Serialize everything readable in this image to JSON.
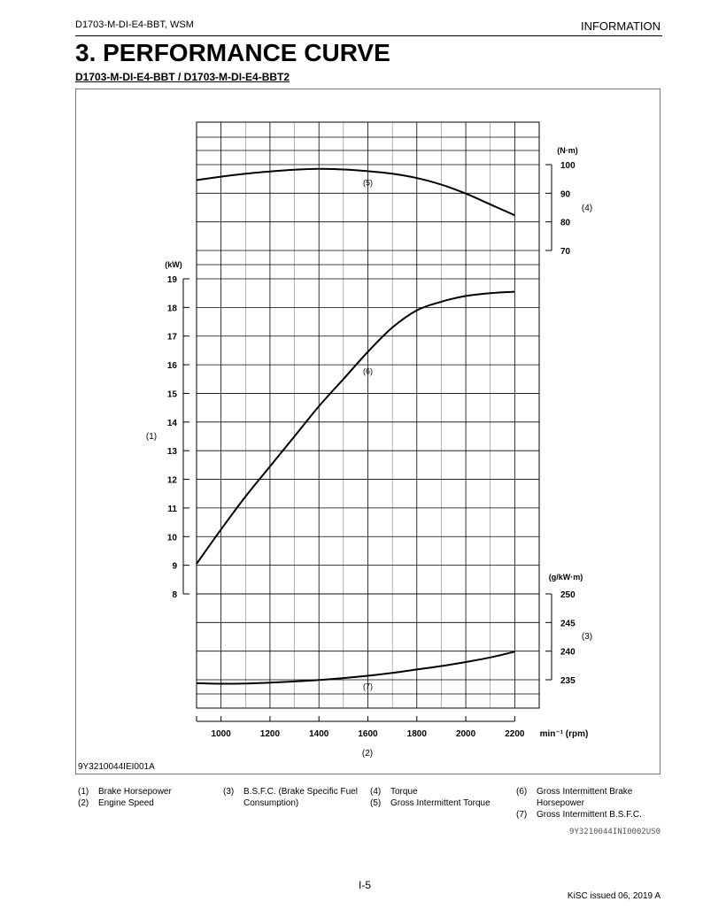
{
  "header": {
    "left": "D1703-M-DI-E4-BBT, WSM",
    "right": "INFORMATION"
  },
  "title": "3.  PERFORMANCE CURVE",
  "subtitle": "D1703-M-DI-E4-BBT / D1703-M-DI-E4-BBT2",
  "figure_code": "9Y3210044IEI001A",
  "legend": [
    {
      "num": "(1)",
      "text": "Brake Horsepower"
    },
    {
      "num": "(2)",
      "text": "Engine Speed"
    },
    {
      "num": "(3)",
      "text": "B.S.F.C. (Brake Specific Fuel Consumption)"
    },
    {
      "num": "(4)",
      "text": "Torque"
    },
    {
      "num": "(5)",
      "text": "Gross Intermittent Torque"
    },
    {
      "num": "(6)",
      "text": "Gross Intermittent Brake Horsepower"
    },
    {
      "num": "(7)",
      "text": "Gross Intermittent B.S.F.C."
    }
  ],
  "doc_code": "9Y3210044INI0002US0",
  "footer": {
    "page": "I-5",
    "issued": "KiSC issued 06, 2019 A"
  },
  "chart_data": {
    "type": "line",
    "x": {
      "label": "(2)",
      "unit": "min⁻¹ (rpm)",
      "ticks": [
        1000,
        1200,
        1400,
        1600,
        1800,
        2000,
        2200
      ],
      "range": [
        900,
        2300
      ]
    },
    "axes": {
      "power": {
        "label": "(1)",
        "unit": "(kW)",
        "ticks": [
          8,
          9,
          10,
          11,
          12,
          13,
          14,
          15,
          16,
          17,
          18,
          19
        ],
        "range": [
          8,
          19
        ]
      },
      "torque": {
        "label": "(4)",
        "unit": "(N·m)",
        "ticks": [
          70,
          80,
          90,
          100
        ],
        "range": [
          70,
          100
        ]
      },
      "bsfc": {
        "label": "(3)",
        "unit": "(g/kW·m)",
        "ticks": [
          235,
          240,
          245,
          250
        ],
        "range": [
          235,
          250
        ]
      }
    },
    "series": [
      {
        "label": "(5)",
        "axis": "torque",
        "label_at": [
          1600,
          94
        ],
        "points": [
          [
            900,
            94.6
          ],
          [
            1000,
            95.8
          ],
          [
            1100,
            96.8
          ],
          [
            1200,
            97.6
          ],
          [
            1300,
            98.2
          ],
          [
            1400,
            98.5
          ],
          [
            1500,
            98.3
          ],
          [
            1600,
            97.7
          ],
          [
            1700,
            96.8
          ],
          [
            1800,
            95.3
          ],
          [
            1900,
            93.0
          ],
          [
            2000,
            89.9
          ],
          [
            2100,
            86.1
          ],
          [
            2200,
            82.3
          ]
        ]
      },
      {
        "label": "(6)",
        "axis": "power",
        "label_at": [
          1600,
          15.8
        ],
        "points": [
          [
            900,
            9.05
          ],
          [
            1000,
            10.25
          ],
          [
            1100,
            11.4
          ],
          [
            1200,
            12.45
          ],
          [
            1300,
            13.5
          ],
          [
            1400,
            14.55
          ],
          [
            1500,
            15.5
          ],
          [
            1600,
            16.45
          ],
          [
            1700,
            17.3
          ],
          [
            1800,
            17.9
          ],
          [
            1900,
            18.2
          ],
          [
            2000,
            18.4
          ],
          [
            2100,
            18.5
          ],
          [
            2200,
            18.55
          ]
        ]
      },
      {
        "label": "(7)",
        "axis": "bsfc",
        "label_at": [
          1600,
          234
        ],
        "points": [
          [
            900,
            234.4
          ],
          [
            1000,
            234.3
          ],
          [
            1100,
            234.35
          ],
          [
            1200,
            234.5
          ],
          [
            1300,
            234.7
          ],
          [
            1400,
            234.95
          ],
          [
            1500,
            235.3
          ],
          [
            1600,
            235.7
          ],
          [
            1700,
            236.2
          ],
          [
            1800,
            236.8
          ],
          [
            1900,
            237.4
          ],
          [
            2000,
            238.1
          ],
          [
            2100,
            238.9
          ],
          [
            2200,
            239.9
          ]
        ]
      }
    ],
    "grid": true
  }
}
